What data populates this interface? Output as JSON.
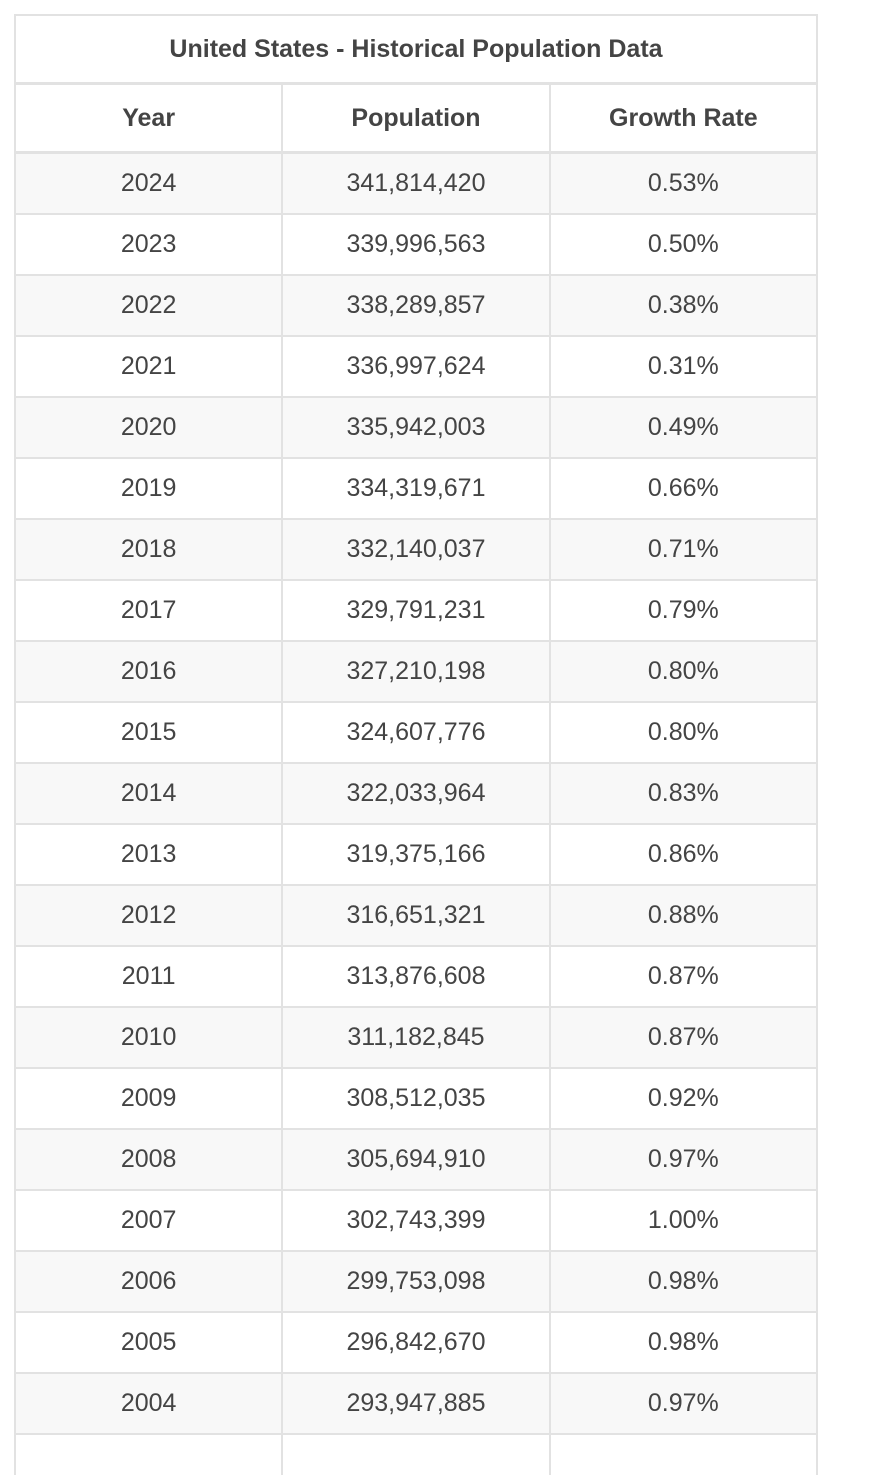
{
  "table": {
    "title": "United States - Historical Population Data",
    "columns": [
      "Year",
      "Population",
      "Growth Rate"
    ],
    "rows": [
      {
        "year": "2024",
        "population": "341,814,420",
        "growth": "0.53%"
      },
      {
        "year": "2023",
        "population": "339,996,563",
        "growth": "0.50%"
      },
      {
        "year": "2022",
        "population": "338,289,857",
        "growth": "0.38%"
      },
      {
        "year": "2021",
        "population": "336,997,624",
        "growth": "0.31%"
      },
      {
        "year": "2020",
        "population": "335,942,003",
        "growth": "0.49%"
      },
      {
        "year": "2019",
        "population": "334,319,671",
        "growth": "0.66%"
      },
      {
        "year": "2018",
        "population": "332,140,037",
        "growth": "0.71%"
      },
      {
        "year": "2017",
        "population": "329,791,231",
        "growth": "0.79%"
      },
      {
        "year": "2016",
        "population": "327,210,198",
        "growth": "0.80%"
      },
      {
        "year": "2015",
        "population": "324,607,776",
        "growth": "0.80%"
      },
      {
        "year": "2014",
        "population": "322,033,964",
        "growth": "0.83%"
      },
      {
        "year": "2013",
        "population": "319,375,166",
        "growth": "0.86%"
      },
      {
        "year": "2012",
        "population": "316,651,321",
        "growth": "0.88%"
      },
      {
        "year": "2011",
        "population": "313,876,608",
        "growth": "0.87%"
      },
      {
        "year": "2010",
        "population": "311,182,845",
        "growth": "0.87%"
      },
      {
        "year": "2009",
        "population": "308,512,035",
        "growth": "0.92%"
      },
      {
        "year": "2008",
        "population": "305,694,910",
        "growth": "0.97%"
      },
      {
        "year": "2007",
        "population": "302,743,399",
        "growth": "1.00%"
      },
      {
        "year": "2006",
        "population": "299,753,098",
        "growth": "0.98%"
      },
      {
        "year": "2005",
        "population": "296,842,670",
        "growth": "0.98%"
      },
      {
        "year": "2004",
        "population": "293,947,885",
        "growth": "0.97%"
      }
    ]
  }
}
